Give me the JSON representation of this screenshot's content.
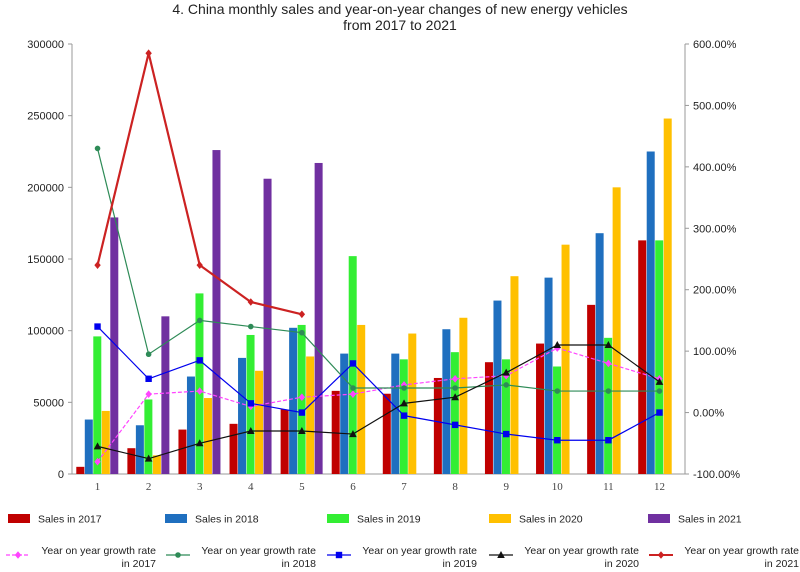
{
  "chart_data": {
    "type": "bar+line",
    "title_line1": "4. China monthly sales and year-on-year changes of new energy vehicles",
    "title_line2": "from 2017 to 2021",
    "categories": [
      "1",
      "2",
      "3",
      "4",
      "5",
      "6",
      "7",
      "8",
      "9",
      "10",
      "11",
      "12"
    ],
    "y_left": {
      "min": 0,
      "max": 300000,
      "ticks": [
        "0",
        "50000",
        "100000",
        "150000",
        "200000",
        "250000",
        "300000"
      ]
    },
    "y_right": {
      "min": -100,
      "max": 600,
      "ticks": [
        "-100.00%",
        "0.00%",
        "100.00%",
        "200.00%",
        "300.00%",
        "400.00%",
        "500.00%",
        "600.00%"
      ]
    },
    "bar_series": [
      {
        "name": "Sales in 2017",
        "color": "#c00000",
        "values": [
          5000,
          18000,
          31000,
          35000,
          45000,
          58000,
          56000,
          67000,
          78000,
          91000,
          118000,
          163000
        ]
      },
      {
        "name": "Sales in 2018",
        "color": "#1f6fbf",
        "values": [
          38000,
          34000,
          68000,
          81000,
          102000,
          84000,
          84000,
          101000,
          121000,
          137000,
          168000,
          225000
        ]
      },
      {
        "name": "Sales in 2019",
        "color": "#33ee33",
        "values": [
          96000,
          52000,
          126000,
          97000,
          104000,
          152000,
          80000,
          85000,
          80000,
          75000,
          95000,
          163000
        ]
      },
      {
        "name": "Sales in 2020",
        "color": "#ffc000",
        "values": [
          44000,
          13000,
          53000,
          72000,
          82000,
          104000,
          98000,
          109000,
          138000,
          160000,
          200000,
          248000
        ]
      },
      {
        "name": "Sales in 2021",
        "color": "#7030a0",
        "values": [
          179000,
          110000,
          226000,
          206000,
          217000,
          null,
          null,
          null,
          null,
          null,
          null,
          null
        ]
      }
    ],
    "line_series": [
      {
        "name": "Year on year growth rate in 2017",
        "color": "#ff44ff",
        "marker": "diamond",
        "values": [
          -80,
          30,
          35,
          10,
          25,
          30,
          45,
          55,
          60,
          105,
          80,
          55
        ]
      },
      {
        "name": "Year on year growth rate in 2018",
        "color": "#2e8b57",
        "marker": "circle",
        "values": [
          430,
          95,
          150,
          140,
          130,
          40,
          40,
          40,
          45,
          35,
          35,
          35
        ]
      },
      {
        "name": "Year on year growth rate in 2019",
        "color": "#0000ee",
        "marker": "square",
        "values": [
          140,
          55,
          85,
          15,
          0,
          80,
          -5,
          -20,
          -35,
          -45,
          -45,
          0
        ]
      },
      {
        "name": "Year on year growth rate in 2020",
        "color": "#111111",
        "marker": "triangle",
        "values": [
          -55,
          -75,
          -50,
          -30,
          -30,
          -35,
          15,
          25,
          65,
          110,
          110,
          50
        ]
      },
      {
        "name": "Year on year growth rate in 2021",
        "color": "#cc2222",
        "marker": "diamond",
        "values": [
          240,
          585,
          240,
          180,
          160,
          null,
          null,
          null,
          null,
          null,
          null,
          null
        ]
      }
    ]
  }
}
